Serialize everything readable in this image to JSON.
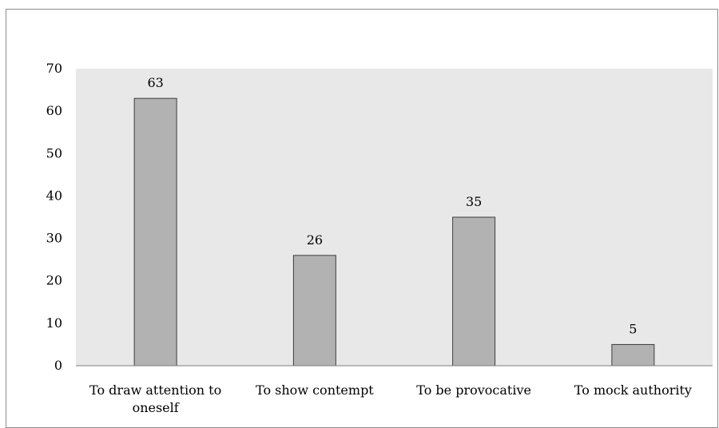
{
  "chart_data": {
    "type": "bar",
    "categories": [
      [
        "To draw attention to",
        "oneself"
      ],
      [
        "To show contempt"
      ],
      [
        "To be provocative"
      ],
      [
        "To mock authority"
      ]
    ],
    "values": [
      63,
      26,
      35,
      5
    ],
    "data_labels": [
      "63",
      "26",
      "35",
      "5"
    ],
    "yticks": [
      "0",
      "10",
      "20",
      "30",
      "40",
      "50",
      "60",
      "70"
    ],
    "ylim": [
      0,
      70
    ],
    "title": "",
    "xlabel": "",
    "ylabel": "",
    "grid": false,
    "legend": "none",
    "colors": {
      "bar_fill": "#b2b2b2",
      "bar_stroke": "#3c3c3c",
      "plot_background": "#e8e8e8",
      "frame": "#8c8c8c"
    }
  }
}
